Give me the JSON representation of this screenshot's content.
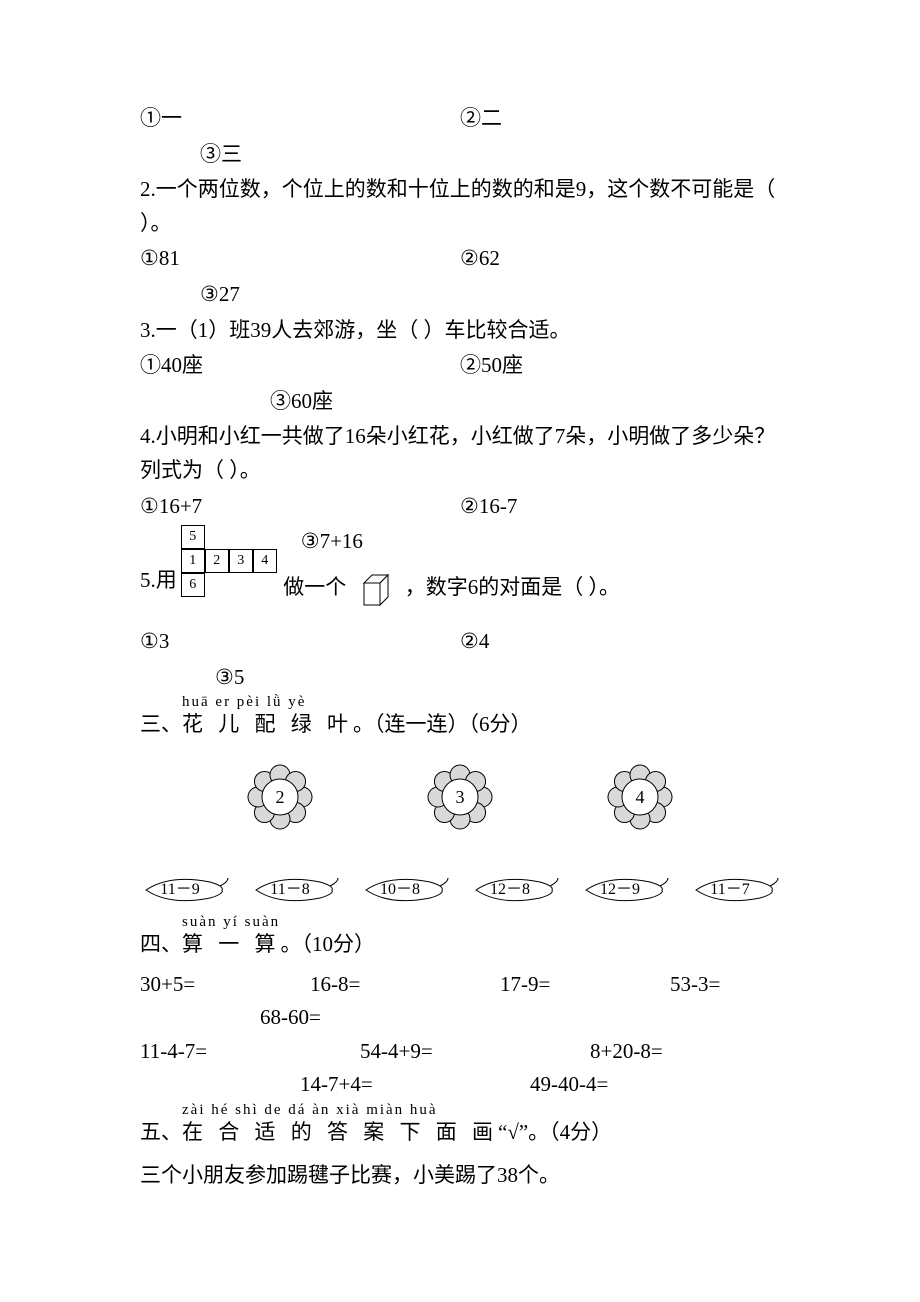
{
  "q1_opts": {
    "a": "①一",
    "b": "②二",
    "c": "③三"
  },
  "q2": {
    "stem": "2.一个两位数，个位上的数和十位上的数的和是9，这个数不可能是（  ）。",
    "a": "①81",
    "b": "②62",
    "c": "③27"
  },
  "q3": {
    "stem": "3.一（1）班39人去郊游，坐（  ）车比较合适。",
    "a": "①40座",
    "b": "②50座",
    "c": "③60座"
  },
  "q4": {
    "stem": "4.小明和小红一共做了16朵小红花，小红做了7朵，小明做了多少朵？列式为（  ）。",
    "a": "①16+7",
    "b": "②16-7",
    "c": "③7+16"
  },
  "q5": {
    "pre": "5.用",
    "mid": "做一个",
    "post": "，数字6的对面是（  ）。",
    "net": {
      "c1": "1",
      "c2": "2",
      "c3": "3",
      "c4": "4",
      "c5": "5",
      "c6": "6"
    },
    "a": "①3",
    "b": "②4",
    "c": "③5"
  },
  "sec3": {
    "label": "三、",
    "pinyin": "huā er pèi lǜ yè",
    "hanzi": "花 儿 配 绿 叶",
    "tail": "。（连一连）（6分）",
    "flowers": [
      "2",
      "3",
      "4"
    ],
    "leaves": [
      "11－9",
      "11－8",
      "10－8",
      "12－8",
      "12－9",
      "11－7"
    ],
    "flower_fill": "#d9d9d9",
    "flower_center_fill": "#ffffff",
    "stroke": "#000000"
  },
  "sec4": {
    "label": "四、",
    "pinyin": "suàn yí suàn",
    "hanzi": "算 一 算",
    "tail": "。（10分）",
    "row1": [
      "30+5=",
      "16-8=",
      "17-9=",
      "53-3="
    ],
    "row1b": "68-60=",
    "row2": [
      "11-4-7=",
      "54-4+9=",
      "8+20-8="
    ],
    "row3": [
      "14-7+4=",
      "49-40-4="
    ]
  },
  "sec5": {
    "label": "五、",
    "pinyin": "zài hé shì de dá àn xià miàn huà",
    "hanzi": "在 合 适 的 答 案 下  面  画",
    "tail": "“√”。（4分）",
    "line": "三个小朋友参加踢毽子比赛，小美踢了38个。"
  }
}
